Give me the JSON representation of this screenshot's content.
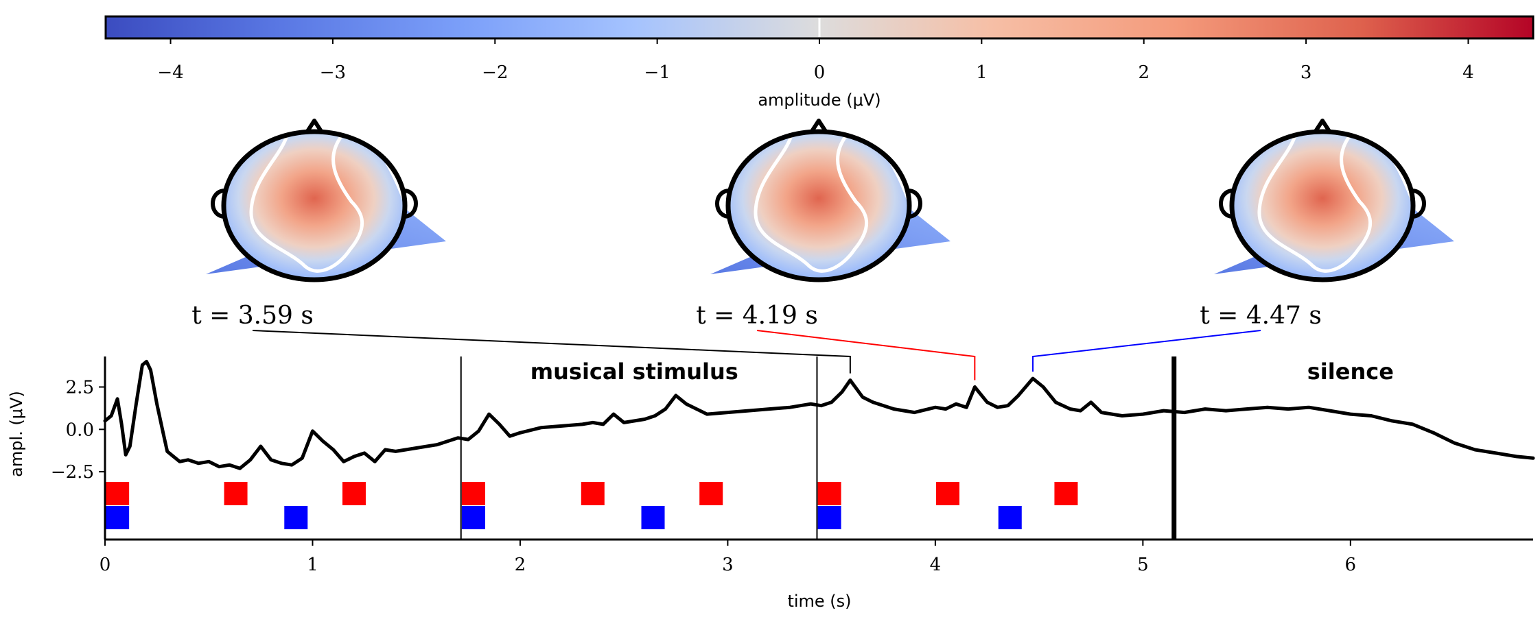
{
  "colorbar": {
    "label": "amplitude (μV)",
    "range": [
      -4.4,
      4.4
    ],
    "ticks": [
      "−4",
      "−3",
      "−2",
      "−1",
      "0",
      "1",
      "2",
      "3",
      "4"
    ],
    "tick_values": [
      -4,
      -3,
      -2,
      -1,
      0,
      1,
      2,
      3,
      4
    ],
    "colormap": "coolwarm",
    "colors": {
      "low": "#3b4cc0",
      "mid": "#dddddd",
      "high": "#b40426"
    }
  },
  "topomaps": [
    {
      "time_label": "t = 3.59 s",
      "time": 3.59,
      "peak_uV": 2.9,
      "connector_color": "#000000"
    },
    {
      "time_label": "t = 4.19 s",
      "time": 4.19,
      "peak_uV": 2.5,
      "connector_color": "#ff0000"
    },
    {
      "time_label": "t = 4.47 s",
      "time": 4.47,
      "peak_uV": 3.0,
      "connector_color": "#0000ff"
    }
  ],
  "chart_data": {
    "type": "line",
    "xlabel": "time (s)",
    "ylabel": "ampl. (μV)",
    "xlim": [
      0,
      6.88
    ],
    "ylim": [
      -6.5,
      4.3
    ],
    "xticks": [
      "0",
      "1",
      "2",
      "3",
      "4",
      "5",
      "6"
    ],
    "xtick_values": [
      0,
      1,
      2,
      3,
      4,
      5,
      6
    ],
    "yticks": [
      "2.5",
      "0.0",
      "−2.5"
    ],
    "ytick_values": [
      2.5,
      0.0,
      -2.5
    ],
    "series": [
      {
        "x": [
          0.0,
          0.03,
          0.06,
          0.08,
          0.1,
          0.12,
          0.15,
          0.18,
          0.2,
          0.22,
          0.25,
          0.28,
          0.3,
          0.33,
          0.36,
          0.4,
          0.45,
          0.5,
          0.55,
          0.6,
          0.65,
          0.7,
          0.75,
          0.8,
          0.85,
          0.9,
          0.95,
          1.0,
          1.05,
          1.1,
          1.15,
          1.2,
          1.25,
          1.3,
          1.35,
          1.4,
          1.5,
          1.6,
          1.7,
          1.75,
          1.8,
          1.85,
          1.9,
          1.95,
          2.0,
          2.1,
          2.2,
          2.3,
          2.35,
          2.4,
          2.45,
          2.5,
          2.6,
          2.65,
          2.7,
          2.75,
          2.8,
          2.9,
          3.0,
          3.1,
          3.2,
          3.3,
          3.4,
          3.45,
          3.5,
          3.55,
          3.59,
          3.65,
          3.7,
          3.8,
          3.9,
          4.0,
          4.05,
          4.1,
          4.15,
          4.19,
          4.25,
          4.3,
          4.35,
          4.4,
          4.47,
          4.52,
          4.58,
          4.65,
          4.7,
          4.75,
          4.8,
          4.9,
          5.0,
          5.1,
          5.2,
          5.3,
          5.4,
          5.5,
          5.6,
          5.7,
          5.8,
          5.9,
          6.0,
          6.1,
          6.2,
          6.3,
          6.4,
          6.5,
          6.6,
          6.7,
          6.8,
          6.88
        ],
        "y": [
          0.5,
          0.8,
          1.8,
          0.3,
          -1.5,
          -1.0,
          1.5,
          3.8,
          4.0,
          3.5,
          1.5,
          -0.2,
          -1.3,
          -1.6,
          -1.9,
          -1.8,
          -2.0,
          -1.9,
          -2.2,
          -2.1,
          -2.3,
          -1.8,
          -1.0,
          -1.8,
          -2.0,
          -2.1,
          -1.7,
          -0.1,
          -0.7,
          -1.2,
          -1.9,
          -1.6,
          -1.4,
          -1.9,
          -1.2,
          -1.3,
          -1.1,
          -0.9,
          -0.5,
          -0.6,
          -0.1,
          0.9,
          0.3,
          -0.4,
          -0.2,
          0.1,
          0.2,
          0.3,
          0.4,
          0.3,
          0.9,
          0.4,
          0.6,
          0.8,
          1.2,
          2.0,
          1.5,
          0.9,
          1.0,
          1.1,
          1.2,
          1.3,
          1.5,
          1.4,
          1.6,
          2.2,
          2.9,
          1.9,
          1.6,
          1.2,
          1.0,
          1.3,
          1.2,
          1.5,
          1.3,
          2.5,
          1.6,
          1.3,
          1.4,
          2.0,
          3.0,
          2.5,
          1.6,
          1.2,
          1.1,
          1.6,
          1.0,
          0.8,
          0.9,
          1.1,
          1.0,
          1.2,
          1.1,
          1.2,
          1.3,
          1.2,
          1.3,
          1.1,
          0.9,
          0.8,
          0.5,
          0.3,
          -0.2,
          -0.8,
          -1.2,
          -1.4,
          -1.6,
          -1.7
        ]
      }
    ],
    "vlines": [
      {
        "x": 1.715,
        "kind": "thin"
      },
      {
        "x": 3.43,
        "kind": "thin"
      },
      {
        "x": 5.15,
        "kind": "thick"
      }
    ],
    "annotations": [
      {
        "text": "musical stimulus",
        "x": 2.55
      },
      {
        "text": "silence",
        "x": 6.0
      }
    ],
    "events": {
      "red": [
        0.06,
        0.63,
        1.2,
        1.775,
        2.35,
        2.92,
        3.49,
        4.06,
        4.63
      ],
      "blue": [
        0.06,
        0.92,
        1.775,
        2.64,
        3.49,
        4.36
      ],
      "red_color": "#ff0000",
      "blue_color": "#0000ff"
    }
  }
}
